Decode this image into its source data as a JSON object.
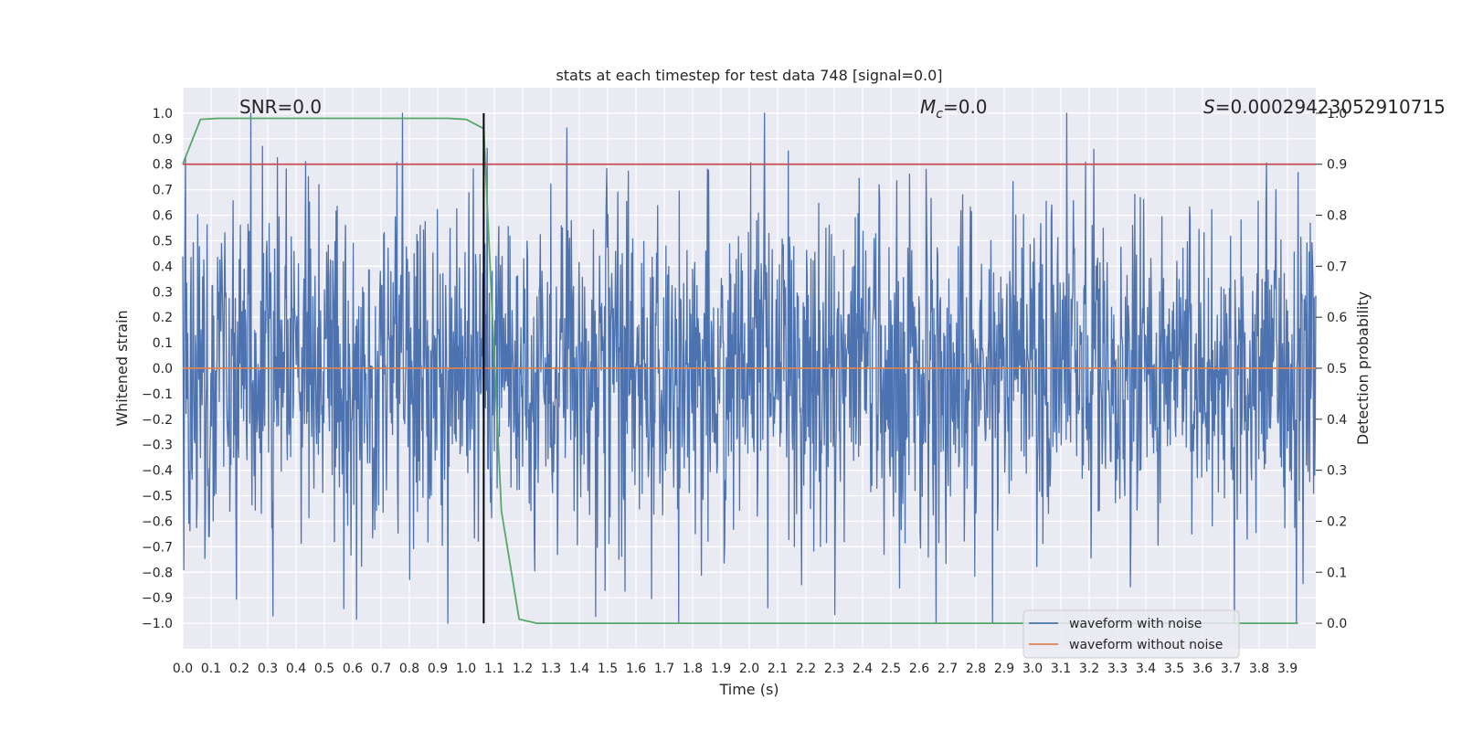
{
  "chart_data": {
    "type": "line",
    "title": "stats at each timestep for test data 748 [signal=0.0]",
    "xlabel": "Time (s)",
    "ylabel": "Whitened strain",
    "ylabel_right": "Detection probability",
    "xlim": [
      0.0,
      4.0
    ],
    "ylim": [
      -1.1,
      1.1
    ],
    "ylim_right": [
      -0.05,
      1.05
    ],
    "grid": true,
    "x_ticks": [
      "0.0",
      "0.1",
      "0.2",
      "0.3",
      "0.4",
      "0.5",
      "0.6",
      "0.7",
      "0.8",
      "0.9",
      "1.0",
      "1.1",
      "1.2",
      "1.3",
      "1.4",
      "1.5",
      "1.6",
      "1.7",
      "1.8",
      "1.9",
      "2.0",
      "2.1",
      "2.2",
      "2.3",
      "2.4",
      "2.5",
      "2.6",
      "2.7",
      "2.8",
      "2.9",
      "3.0",
      "3.1",
      "3.2",
      "3.3",
      "3.4",
      "3.5",
      "3.6",
      "3.7",
      "3.8",
      "3.9"
    ],
    "y_ticks": [
      "1.0",
      "0.9",
      "0.8",
      "0.7",
      "0.6",
      "0.5",
      "0.4",
      "0.3",
      "0.2",
      "0.1",
      "0.0",
      "−0.1",
      "−0.2",
      "−0.3",
      "−0.4",
      "−0.5",
      "−0.6",
      "−0.7",
      "−0.8",
      "−0.9",
      "−1.0"
    ],
    "y_tick_values": [
      1.0,
      0.9,
      0.8,
      0.7,
      0.6,
      0.5,
      0.4,
      0.3,
      0.2,
      0.1,
      0.0,
      -0.1,
      -0.2,
      -0.3,
      -0.4,
      -0.5,
      -0.6,
      -0.7,
      -0.8,
      -0.9,
      -1.0
    ],
    "y_ticks_right": [
      "1.0",
      "0.9",
      "0.8",
      "0.7",
      "0.6",
      "0.5",
      "0.4",
      "0.3",
      "0.2",
      "0.1",
      "0.0"
    ],
    "y_tick_values_right": [
      1.0,
      0.9,
      0.8,
      0.7,
      0.6,
      0.5,
      0.4,
      0.3,
      0.2,
      0.1,
      0.0
    ],
    "annotations": {
      "snr": "SNR=0.0",
      "mc_symbol": "M",
      "mc_sub": "c",
      "mc_value": "=0.0",
      "s_symbol": "S",
      "s_value": "=0.00029423052910715"
    },
    "series": [
      {
        "name": "waveform with noise",
        "color": "#4c72b0",
        "axis": "left",
        "kind": "noise",
        "x_range": [
          0.0,
          4.0
        ],
        "n_points": 2048,
        "amplitude_std": 0.33,
        "amplitude_max": 1.0
      },
      {
        "name": "waveform without noise",
        "color": "#dd8452",
        "axis": "left",
        "x": [
          0.0,
          4.0
        ],
        "y": [
          0.0,
          0.0
        ]
      },
      {
        "name": "detection probability",
        "color": "#55a868",
        "axis": "right",
        "x": [
          0.0,
          0.0625,
          0.125,
          0.1875,
          0.25,
          0.5,
          0.75,
          0.9375,
          1.0,
          1.0625,
          1.125,
          1.1875,
          1.25,
          1.5,
          2.0,
          2.5,
          3.0,
          3.5,
          3.9375
        ],
        "y": [
          0.9,
          0.988,
          0.99,
          0.99,
          0.99,
          0.99,
          0.99,
          0.99,
          0.988,
          0.97,
          0.22,
          0.008,
          0.0,
          0.0,
          0.0,
          0.0,
          0.0,
          0.0,
          0.0
        ]
      },
      {
        "name": "threshold",
        "color": "#c44e52",
        "axis": "right",
        "x": [
          0.0,
          4.0
        ],
        "y": [
          0.9,
          0.9
        ]
      }
    ],
    "marker_line": {
      "x": 1.0625,
      "y_from": -1.0,
      "y_to": 1.0,
      "color": "#000000"
    },
    "legend": {
      "position": "bottom-right",
      "entries": [
        {
          "label": "waveform with noise",
          "color": "#4c72b0"
        },
        {
          "label": "waveform without noise",
          "color": "#dd8452"
        }
      ]
    }
  }
}
